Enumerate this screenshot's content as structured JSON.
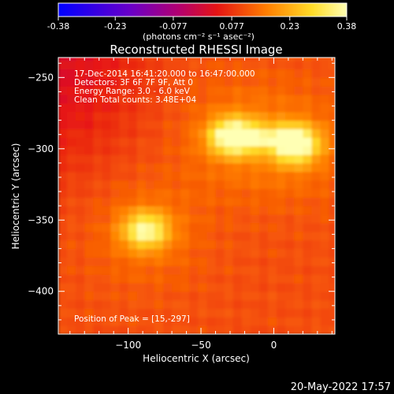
{
  "chart_data": {
    "type": "heatmap",
    "title": "Reconstructed RHESSI Image",
    "xlabel": "Heliocentric X (arcsec)",
    "ylabel": "Heliocentric Y (arcsec)",
    "xlim": [
      -148,
      42
    ],
    "ylim": [
      -430,
      -236
    ],
    "x_ticks": [
      -100,
      -50,
      0
    ],
    "y_ticks": [
      -250,
      -300,
      -350,
      -400
    ],
    "grid": false,
    "colorbar": {
      "position": "top",
      "range": [
        -0.38,
        0.38
      ],
      "tick_values": [
        -0.38,
        -0.23,
        -0.077,
        0.077,
        0.23,
        0.38
      ],
      "tick_labels": [
        "-0.38",
        "-0.23",
        "-0.077",
        "0.077",
        "0.23",
        "0.38"
      ],
      "unit_label": "(photons cm⁻² s⁻¹ asec⁻²)"
    },
    "annotations": [
      "17-Dec-2014 16:41:20.000 to 16:47:00.000",
      "Detectors: 3F 6F 7F 9F, Att 0",
      "Energy Range: 3.0 - 6.0 keV",
      "Clean     Total counts: 3.48E+04",
      "Position of Peak = [15,-297]"
    ],
    "sources": [
      {
        "x": -88,
        "y": -357,
        "peak": 0.34
      },
      {
        "x": -28,
        "y": -291,
        "peak": 0.37
      },
      {
        "x": 15,
        "y": -297,
        "peak": 0.38
      }
    ],
    "peak_position": [
      15,
      -297
    ]
  },
  "footer": {
    "date": "20-May-2022 17:57"
  },
  "colors": {
    "background": "#000000",
    "text": "#ffffff",
    "colormap": "blue-purple-red-yellow-white"
  }
}
